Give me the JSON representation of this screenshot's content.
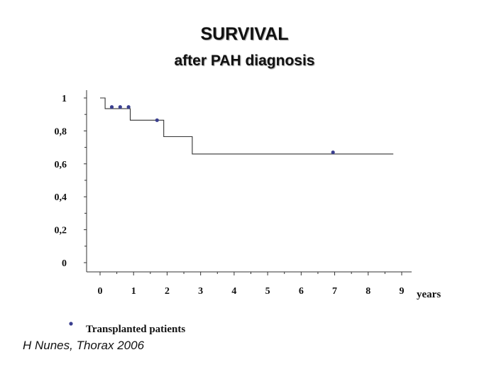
{
  "title": "SURVIVAL",
  "subtitle": "after PAH diagnosis",
  "source": "H Nunes, Thorax 2006",
  "colors": {
    "curve": "#333333",
    "marker": "#3a3f8f",
    "axis": "#333333"
  },
  "chart_data": {
    "type": "line",
    "xlabel": "years",
    "ylabel": "",
    "xlim": [
      0,
      9
    ],
    "ylim": [
      0,
      1
    ],
    "x_ticks": [
      "0",
      "1",
      "2",
      "3",
      "4",
      "5",
      "6",
      "7",
      "8",
      "9"
    ],
    "y_ticks": [
      "0",
      "0,2",
      "0,4",
      "0,6",
      "0,8",
      "1"
    ],
    "grid": false,
    "series": [
      {
        "style": "step",
        "x": [
          0,
          0.15,
          0.15,
          0.9,
          0.9,
          1.9,
          1.9,
          2.75,
          2.75,
          8.75
        ],
        "y": [
          1,
          1,
          0.935,
          0.935,
          0.865,
          0.865,
          0.765,
          0.765,
          0.66,
          0.66
        ]
      },
      {
        "name": "Transplanted patients",
        "style": "marker",
        "x": [
          0.35,
          0.6,
          0.85,
          1.7,
          6.95
        ],
        "y": [
          0.945,
          0.945,
          0.945,
          0.865,
          0.67
        ]
      }
    ],
    "legend": {
      "position": "bottom-left",
      "entries": [
        "Transplanted patients"
      ]
    }
  }
}
